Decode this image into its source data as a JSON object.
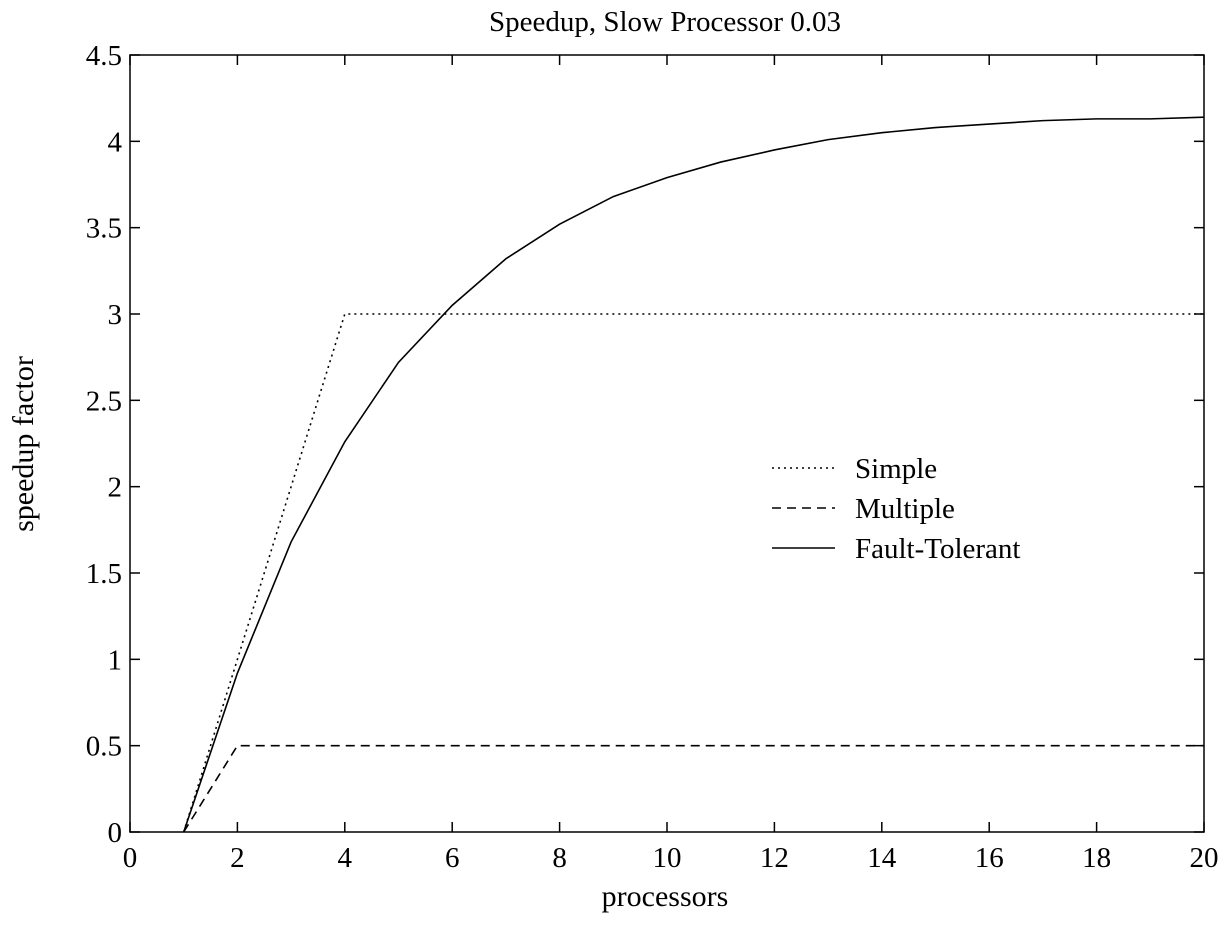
{
  "chart_data": {
    "type": "line",
    "title": "Speedup, Slow Processor 0.03",
    "xlabel": "processors",
    "ylabel": "speedup factor",
    "xlim": [
      0,
      20
    ],
    "ylim": [
      0,
      4.5
    ],
    "xticks": [
      0,
      2,
      4,
      6,
      8,
      10,
      12,
      14,
      16,
      18,
      20
    ],
    "yticks": [
      0,
      0.5,
      1,
      1.5,
      2,
      2.5,
      3,
      3.5,
      4,
      4.5
    ],
    "grid": false,
    "legend_position": "center-right",
    "series": [
      {
        "name": "Simple",
        "style": "dotted",
        "color": "#000000",
        "x": [
          1,
          4,
          20
        ],
        "y": [
          0,
          3,
          3
        ]
      },
      {
        "name": "Multiple",
        "style": "dashed",
        "color": "#000000",
        "x": [
          1,
          2,
          20
        ],
        "y": [
          0,
          0.5,
          0.5
        ]
      },
      {
        "name": "Fault-Tolerant",
        "style": "solid",
        "color": "#000000",
        "x": [
          1,
          2,
          3,
          4,
          5,
          6,
          7,
          8,
          9,
          10,
          11,
          12,
          13,
          14,
          15,
          16,
          17,
          18,
          19,
          20
        ],
        "y": [
          0,
          0.92,
          1.68,
          2.26,
          2.72,
          3.05,
          3.32,
          3.52,
          3.68,
          3.79,
          3.88,
          3.95,
          4.01,
          4.05,
          4.08,
          4.1,
          4.12,
          4.13,
          4.13,
          4.14
        ]
      }
    ]
  }
}
